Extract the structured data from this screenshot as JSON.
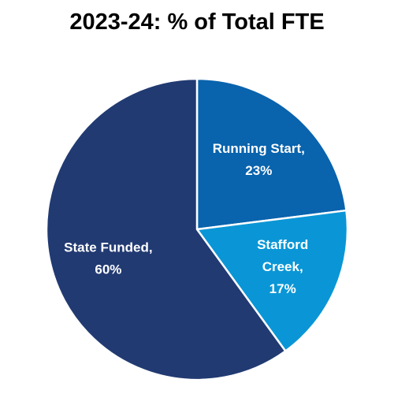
{
  "chart_data": {
    "type": "pie",
    "title": "2023-24: % of Total FTE",
    "slices": [
      {
        "label_lines": [
          "Running Start,",
          "23%"
        ],
        "category": "Running Start",
        "value": 23,
        "color": "#0963ad"
      },
      {
        "label_lines": [
          "Stafford",
          "Creek,",
          "17%"
        ],
        "category": "Stafford Creek",
        "value": 17,
        "color": "#0a96d6"
      },
      {
        "label_lines": [
          "State Funded,",
          "60%"
        ],
        "category": "State Funded",
        "value": 60,
        "color": "#213a72"
      }
    ],
    "start_angle_deg": 0,
    "direction": "clockwise",
    "slice_border_color": "#ffffff",
    "legend": "none"
  }
}
